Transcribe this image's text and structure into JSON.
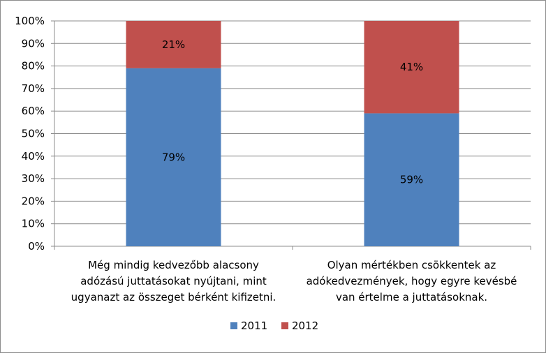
{
  "chart_data": {
    "type": "bar",
    "stacked": true,
    "percent_stacked": true,
    "categories": [
      [
        "Még mindig kedvezőbb alacsony",
        "adózású juttatásokat nyújtani, mint",
        "ugyanazt az összeget bérként kifizetni."
      ],
      [
        "Olyan mértékben csökkentek az",
        "adókedvezmények, hogy egyre kevésbé",
        "van értelme a juttatásoknak."
      ]
    ],
    "series": [
      {
        "name": "2011",
        "values": [
          79,
          59
        ],
        "labels": [
          "79%",
          "59%"
        ],
        "color": "#4f81bd"
      },
      {
        "name": "2012",
        "values": [
          21,
          41
        ],
        "labels": [
          "21%",
          "41%"
        ],
        "color": "#c0504d"
      }
    ],
    "yticks": [
      "0%",
      "10%",
      "20%",
      "30%",
      "40%",
      "50%",
      "60%",
      "70%",
      "80%",
      "90%",
      "100%"
    ],
    "ylim": [
      0,
      100
    ],
    "grid": true,
    "legend_position": "bottom"
  }
}
